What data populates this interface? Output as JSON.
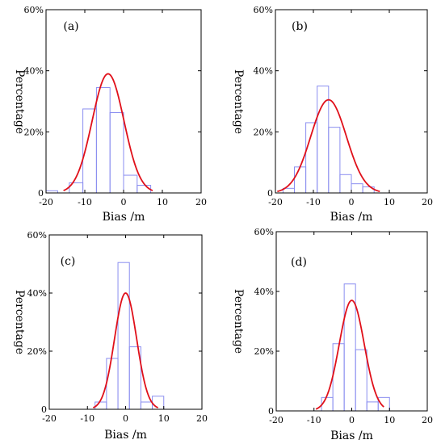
{
  "chart_data": [
    {
      "type": "bar",
      "panel": "(a)",
      "xlabel": "Bias /m",
      "ylabel": "Percentage",
      "xlim": [
        -20,
        20
      ],
      "ylim": [
        0,
        60
      ],
      "xticks": [
        "-20",
        "-10",
        "0",
        "10",
        "20"
      ],
      "yticks": [
        "0",
        "20%",
        "40%",
        "60%"
      ],
      "bins": [
        {
          "x0": -20,
          "x1": -17,
          "value": 0.7
        },
        {
          "x0": -17,
          "x1": -14,
          "value": 0.0
        },
        {
          "x0": -14,
          "x1": -10.5,
          "value": 3.3
        },
        {
          "x0": -10.5,
          "x1": -7,
          "value": 27.5
        },
        {
          "x0": -7,
          "x1": -3.5,
          "value": 34.5
        },
        {
          "x0": -3.5,
          "x1": 0,
          "value": 26.3
        },
        {
          "x0": 0,
          "x1": 3.5,
          "value": 5.8
        },
        {
          "x0": 3.5,
          "x1": 7,
          "value": 2.5
        }
      ],
      "fit": {
        "type": "normal",
        "mean": -4,
        "sd": 4.1,
        "peak": 39,
        "x_range": [
          -15.5,
          7.5
        ]
      }
    },
    {
      "type": "bar",
      "panel": "(b)",
      "xlabel": "Bias /m",
      "ylabel": "Percentage",
      "xlim": [
        -20,
        20
      ],
      "ylim": [
        0,
        60
      ],
      "xticks": [
        "-20",
        "-10",
        "0",
        "10",
        "20"
      ],
      "yticks": [
        "0",
        "20%",
        "40%",
        "60%"
      ],
      "bins": [
        {
          "x0": -18,
          "x1": -15,
          "value": 1.5
        },
        {
          "x0": -15,
          "x1": -12,
          "value": 8.5
        },
        {
          "x0": -12,
          "x1": -9,
          "value": 23.0
        },
        {
          "x0": -9,
          "x1": -6,
          "value": 35.0
        },
        {
          "x0": -6,
          "x1": -3,
          "value": 21.5
        },
        {
          "x0": -3,
          "x1": 0,
          "value": 6.0
        },
        {
          "x0": 0,
          "x1": 3,
          "value": 3.0
        },
        {
          "x0": 3,
          "x1": 6,
          "value": 2.0
        }
      ],
      "fit": {
        "type": "normal",
        "mean": -6,
        "sd": 4.7,
        "peak": 30.5,
        "x_range": [
          -19.5,
          7.5
        ]
      }
    },
    {
      "type": "bar",
      "panel": "(c)",
      "xlabel": "Bias /m",
      "ylabel": "Percentage",
      "xlim": [
        -20,
        20
      ],
      "ylim": [
        0,
        60
      ],
      "xticks": [
        "-20",
        "-10",
        "0",
        "10",
        "20"
      ],
      "yticks": [
        "0",
        "20%",
        "40%",
        "60%"
      ],
      "bins": [
        {
          "x0": -8,
          "x1": -5,
          "value": 2.5
        },
        {
          "x0": -5,
          "x1": -2,
          "value": 17.5
        },
        {
          "x0": -2,
          "x1": 1,
          "value": 50.5
        },
        {
          "x0": 1,
          "x1": 4,
          "value": 21.5
        },
        {
          "x0": 4,
          "x1": 7,
          "value": 2.5
        },
        {
          "x0": 7,
          "x1": 10,
          "value": 4.5
        }
      ],
      "fit": {
        "type": "normal",
        "mean": 0,
        "sd": 2.9,
        "peak": 40,
        "x_range": [
          -8.5,
          8.5
        ]
      }
    },
    {
      "type": "bar",
      "panel": "(d)",
      "xlabel": "Bias /m",
      "ylabel": "Percentage",
      "xlim": [
        -20,
        20
      ],
      "ylim": [
        0,
        60
      ],
      "xticks": [
        "-20",
        "-10",
        "0",
        "10",
        "20"
      ],
      "yticks": [
        "0",
        "20%",
        "40%",
        "60%"
      ],
      "bins": [
        {
          "x0": -8,
          "x1": -5,
          "value": 4.5
        },
        {
          "x0": -5,
          "x1": -2,
          "value": 22.5
        },
        {
          "x0": -2,
          "x1": 1,
          "value": 42.5
        },
        {
          "x0": 1,
          "x1": 4,
          "value": 20.5
        },
        {
          "x0": 4,
          "x1": 7,
          "value": 3.0
        },
        {
          "x0": 7,
          "x1": 10,
          "value": 4.5
        }
      ],
      "fit": {
        "type": "normal",
        "mean": 0,
        "sd": 3.3,
        "peak": 37,
        "x_range": [
          -9.5,
          8.5
        ]
      }
    }
  ],
  "colors": {
    "bar_edge": "#8a8ef0",
    "fit_line": "#e0101a",
    "axis": "#000000"
  }
}
